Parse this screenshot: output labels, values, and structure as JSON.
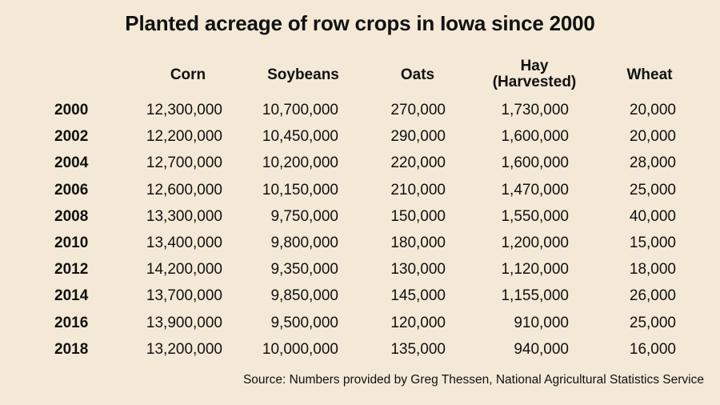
{
  "chart_data": {
    "type": "table",
    "title": "Planted acreage of row crops in Iowa since 2000",
    "columns": [
      "Corn",
      "Soybeans",
      "Oats",
      "Hay (Harvested)",
      "Wheat"
    ],
    "column_header_lines": [
      [
        "Corn"
      ],
      [
        "Soybeans"
      ],
      [
        "Oats"
      ],
      [
        "Hay",
        "(Harvested)"
      ],
      [
        "Wheat"
      ]
    ],
    "rows": [
      {
        "year": "2000",
        "values": [
          "12,300,000",
          "10,700,000",
          "270,000",
          "1,730,000",
          "20,000"
        ]
      },
      {
        "year": "2002",
        "values": [
          "12,200,000",
          "10,450,000",
          "290,000",
          "1,600,000",
          "20,000"
        ]
      },
      {
        "year": "2004",
        "values": [
          "12,700,000",
          "10,200,000",
          "220,000",
          "1,600,000",
          "28,000"
        ]
      },
      {
        "year": "2006",
        "values": [
          "12,600,000",
          "10,150,000",
          "210,000",
          "1,470,000",
          "25,000"
        ]
      },
      {
        "year": "2008",
        "values": [
          "13,300,000",
          "9,750,000",
          "150,000",
          "1,550,000",
          "40,000"
        ]
      },
      {
        "year": "2010",
        "values": [
          "13,400,000",
          "9,800,000",
          "180,000",
          "1,200,000",
          "15,000"
        ]
      },
      {
        "year": "2012",
        "values": [
          "14,200,000",
          "9,350,000",
          "130,000",
          "1,120,000",
          "18,000"
        ]
      },
      {
        "year": "2014",
        "values": [
          "13,700,000",
          "9,850,000",
          "145,000",
          "1,155,000",
          "26,000"
        ]
      },
      {
        "year": "2016",
        "values": [
          "13,900,000",
          "9,500,000",
          "120,000",
          "910,000",
          "25,000"
        ]
      },
      {
        "year": "2018",
        "values": [
          "13,200,000",
          "10,000,000",
          "135,000",
          "940,000",
          "16,000"
        ]
      }
    ],
    "source": "Source: Numbers provided by Greg Thessen, National Agricultural Statistics Service"
  },
  "colors": {
    "background": "#f3e9d6",
    "text": "#111111"
  }
}
